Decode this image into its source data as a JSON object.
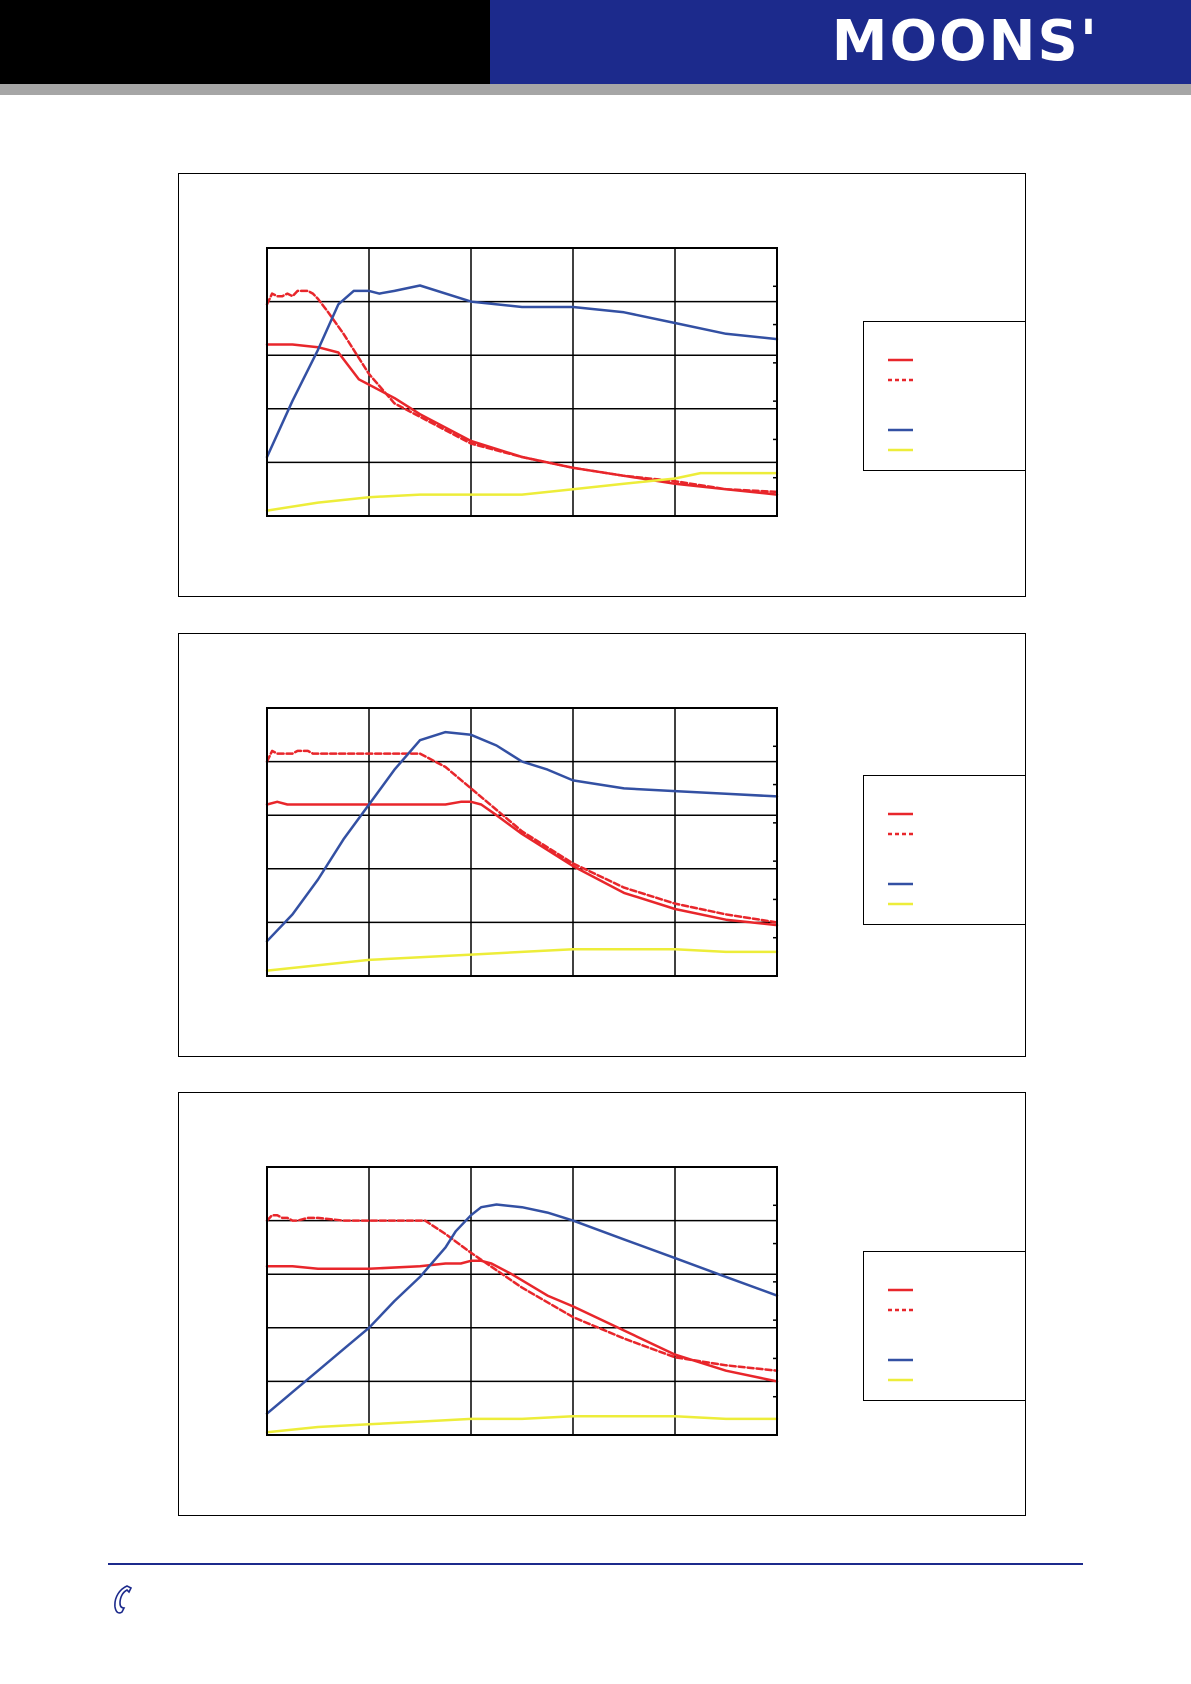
{
  "header": {
    "logo_text": "MOONS'",
    "left_band_color": "#000000",
    "right_band_color": "#1c2a8c",
    "rule_color": "#a6a6a6"
  },
  "footer": {
    "rule_color": "#1c2a8c",
    "icon": "phone-icon"
  },
  "colors": {
    "solid_red": "#e8262b",
    "dashed_red": "#e8262b",
    "blue": "#3350a3",
    "yellow": "#eded3a"
  },
  "chart_data": [
    {
      "type": "line",
      "title": "",
      "xlabel": "",
      "ylabel": "",
      "xlim": [
        0,
        100
      ],
      "ylim": [
        0,
        100
      ],
      "grid": true,
      "legend_position": "right",
      "series": [
        {
          "style": "solid",
          "color": "#e8262b",
          "x": [
            0,
            5,
            10,
            14,
            18,
            25,
            30,
            40,
            50,
            60,
            70,
            80,
            90,
            100
          ],
          "y": [
            64,
            64,
            63,
            61,
            51,
            44,
            38,
            28,
            22,
            18,
            15,
            12,
            10,
            8
          ]
        },
        {
          "style": "dashed",
          "color": "#e8262b",
          "x": [
            0,
            1,
            2,
            3,
            4,
            5,
            6,
            7,
            8,
            9,
            10,
            12,
            15,
            20,
            25,
            30,
            40,
            50,
            60,
            70,
            80,
            90,
            100
          ],
          "y": [
            79,
            83,
            82,
            82,
            83,
            82,
            84,
            84,
            84,
            83,
            81,
            76,
            68,
            53,
            42,
            37,
            27,
            22,
            18,
            15,
            13,
            10,
            9
          ]
        },
        {
          "style": "solid",
          "color": "#3350a3",
          "x": [
            0,
            5,
            10,
            14,
            17,
            18,
            20,
            22,
            25,
            30,
            40,
            50,
            60,
            70,
            80,
            90,
            100
          ],
          "y": [
            22,
            43,
            62,
            79,
            84,
            84,
            84,
            83,
            84,
            86,
            80,
            78,
            78,
            76,
            72,
            68,
            66
          ]
        },
        {
          "style": "solid",
          "color": "#eded3a",
          "x": [
            0,
            10,
            20,
            30,
            40,
            50,
            60,
            70,
            80,
            85,
            90,
            100
          ],
          "y": [
            2,
            5,
            7,
            8,
            8,
            8,
            10,
            12,
            14,
            16,
            16,
            16
          ]
        }
      ]
    },
    {
      "type": "line",
      "title": "",
      "xlabel": "",
      "ylabel": "",
      "xlim": [
        0,
        100
      ],
      "ylim": [
        0,
        100
      ],
      "grid": true,
      "legend_position": "right",
      "series": [
        {
          "style": "solid",
          "color": "#e8262b",
          "x": [
            0,
            2,
            4,
            8,
            12,
            20,
            30,
            35,
            38,
            40,
            42,
            45,
            50,
            60,
            70,
            80,
            90,
            100
          ],
          "y": [
            64,
            65,
            64,
            64,
            64,
            64,
            64,
            64,
            65,
            65,
            64,
            60,
            53,
            41,
            31,
            25,
            21,
            19
          ]
        },
        {
          "style": "dashed",
          "color": "#e8262b",
          "x": [
            0,
            1,
            2,
            3,
            4,
            5,
            6,
            7,
            8,
            9,
            10,
            12,
            15,
            20,
            25,
            30,
            35,
            40,
            50,
            60,
            70,
            80,
            90,
            100
          ],
          "y": [
            80,
            84,
            83,
            83,
            83,
            83,
            84,
            84,
            84,
            83,
            83,
            83,
            83,
            83,
            83,
            83,
            78,
            70,
            54,
            42,
            33,
            27,
            23,
            20
          ]
        },
        {
          "style": "solid",
          "color": "#3350a3",
          "x": [
            0,
            5,
            10,
            15,
            20,
            25,
            30,
            35,
            40,
            45,
            50,
            55,
            60,
            70,
            80,
            90,
            100
          ],
          "y": [
            13,
            23,
            36,
            51,
            64,
            77,
            88,
            91,
            90,
            86,
            80,
            77,
            73,
            70,
            69,
            68,
            67
          ]
        },
        {
          "style": "solid",
          "color": "#eded3a",
          "x": [
            0,
            10,
            20,
            30,
            40,
            50,
            60,
            70,
            80,
            90,
            100
          ],
          "y": [
            2,
            4,
            6,
            7,
            8,
            9,
            10,
            10,
            10,
            9,
            9
          ]
        }
      ]
    },
    {
      "type": "line",
      "title": "",
      "xlabel": "",
      "ylabel": "",
      "xlim": [
        0,
        100
      ],
      "ylim": [
        0,
        100
      ],
      "grid": true,
      "legend_position": "right",
      "series": [
        {
          "style": "solid",
          "color": "#e8262b",
          "x": [
            0,
            5,
            10,
            20,
            30,
            35,
            38,
            40,
            42,
            44,
            48,
            55,
            60,
            70,
            80,
            90,
            100
          ],
          "y": [
            63,
            63,
            62,
            62,
            63,
            64,
            64,
            65,
            65,
            64,
            60,
            52,
            48,
            39,
            30,
            24,
            20
          ]
        },
        {
          "style": "dashed",
          "color": "#e8262b",
          "x": [
            0,
            1,
            2,
            3,
            4,
            5,
            6,
            8,
            10,
            15,
            20,
            25,
            30,
            31,
            35,
            40,
            50,
            60,
            70,
            80,
            90,
            100
          ],
          "y": [
            80,
            82,
            82,
            81,
            81,
            80,
            80,
            81,
            81,
            80,
            80,
            80,
            80,
            80,
            75,
            68,
            55,
            44,
            36,
            29,
            26,
            24
          ]
        },
        {
          "style": "solid",
          "color": "#3350a3",
          "x": [
            0,
            5,
            10,
            15,
            20,
            25,
            30,
            35,
            37,
            40,
            42,
            45,
            50,
            55,
            60,
            70,
            80,
            90,
            100
          ],
          "y": [
            8,
            16,
            24,
            32,
            40,
            50,
            59,
            70,
            76,
            82,
            85,
            86,
            85,
            83,
            80,
            73,
            66,
            59,
            52
          ]
        },
        {
          "style": "solid",
          "color": "#eded3a",
          "x": [
            0,
            10,
            20,
            30,
            40,
            50,
            60,
            70,
            80,
            90,
            100
          ],
          "y": [
            1,
            3,
            4,
            5,
            6,
            6,
            7,
            7,
            7,
            6,
            6
          ]
        }
      ]
    }
  ]
}
